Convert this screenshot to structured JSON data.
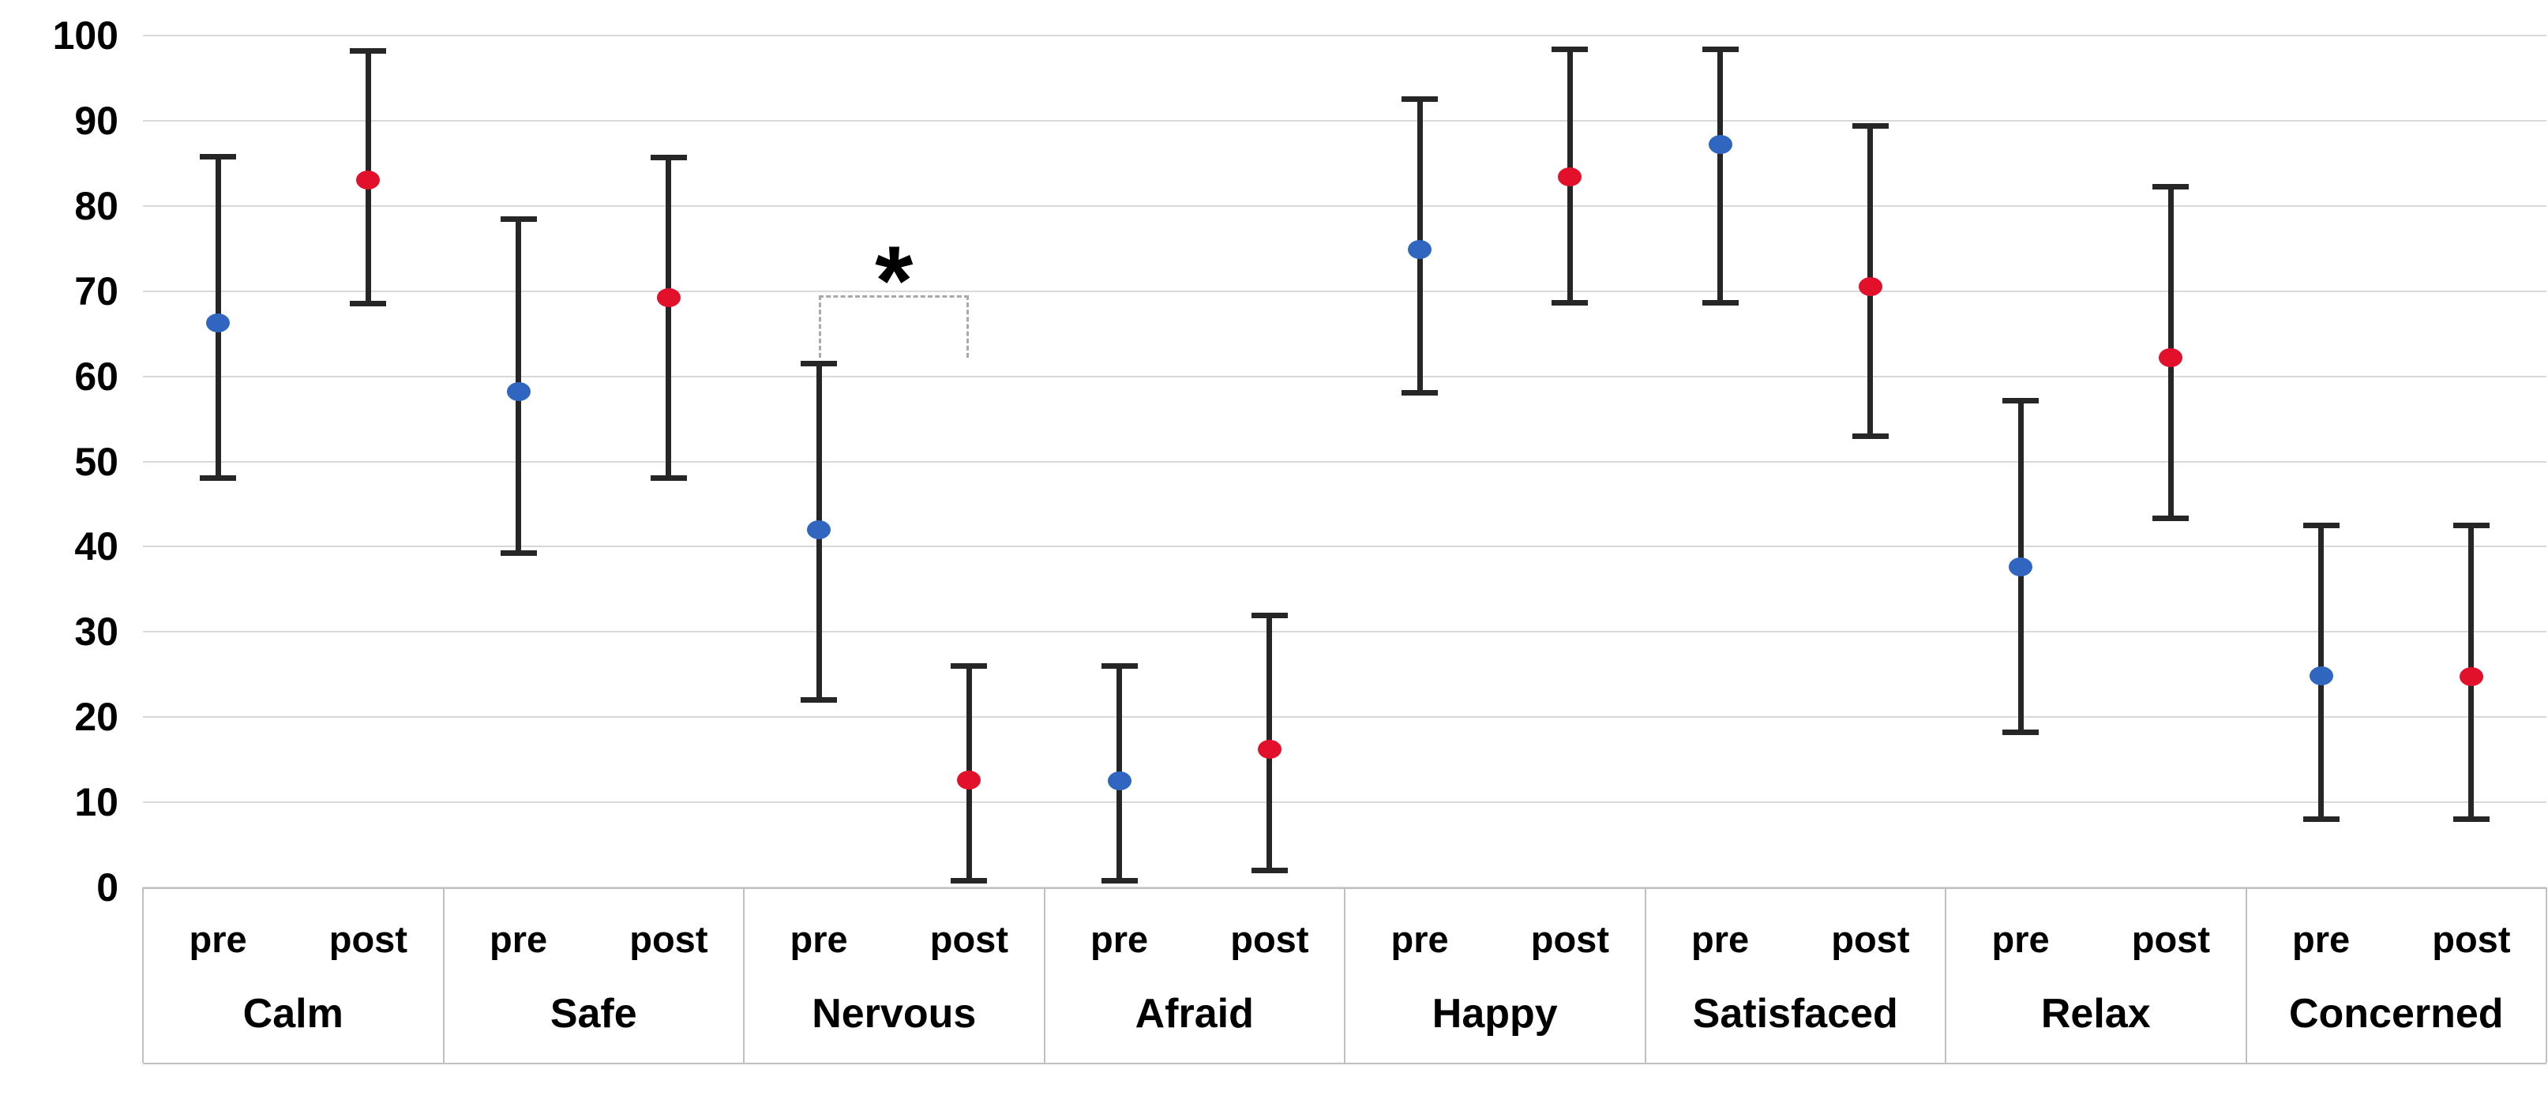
{
  "chart_data": {
    "type": "scatter",
    "categories": [
      "Calm",
      "Safe",
      "Nervous",
      "Afraid",
      "Happy",
      "Satisfaced",
      "Relax",
      "Concerned"
    ],
    "subgroup_labels": [
      "pre",
      "post"
    ],
    "series": [
      {
        "name": "pre",
        "color": "#3066c0",
        "values": [
          66.3,
          58.2,
          42.0,
          12.5,
          74.9,
          87.2,
          37.6,
          24.8
        ],
        "err_low": [
          48.0,
          39.2,
          22.0,
          0.7,
          58.0,
          68.6,
          18.2,
          8.0
        ],
        "err_high": [
          85.8,
          78.5,
          61.5,
          26.0,
          92.6,
          98.4,
          57.2,
          42.5
        ]
      },
      {
        "name": "post",
        "color": "#e3102c",
        "values": [
          83.0,
          69.2,
          12.6,
          16.2,
          83.4,
          70.5,
          62.2,
          24.7
        ],
        "err_low": [
          68.5,
          48.0,
          0.7,
          1.9,
          68.6,
          52.9,
          43.3,
          8.0
        ],
        "err_high": [
          98.2,
          85.7,
          26.0,
          32.0,
          98.4,
          89.4,
          82.3,
          42.5
        ]
      }
    ],
    "ylim": [
      0,
      100
    ],
    "ytick_step": 10,
    "yticks": [
      "0",
      "10",
      "20",
      "30",
      "40",
      "50",
      "60",
      "70",
      "80",
      "90",
      "100"
    ],
    "xlabel": "",
    "ylabel": "",
    "grid": true,
    "legend": "none",
    "error_bar_color": "#262626",
    "gridline_color": "#d9d9d9",
    "significance": {
      "category": "Nervous",
      "label": "*",
      "bracket_value": 69.5,
      "drop_value": 62.2
    }
  }
}
